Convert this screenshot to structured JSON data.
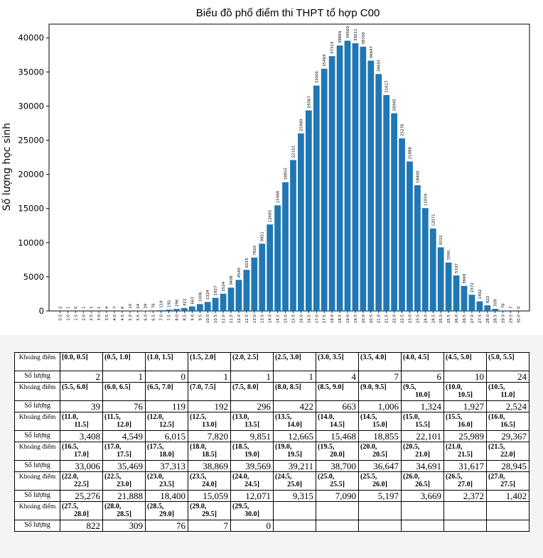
{
  "chart_data": {
    "type": "bar",
    "title": "Biểu đồ phổ điểm thi THPT tổ hợp C00",
    "xlabel": "",
    "ylabel": "Số lượng học sinh",
    "ylim": [
      0,
      42000
    ],
    "yticks": [
      "0",
      "5000",
      "10000",
      "15000",
      "20000",
      "25000",
      "30000",
      "35000",
      "40000"
    ],
    "ytick_values": [
      0,
      5000,
      10000,
      15000,
      20000,
      25000,
      30000,
      35000,
      40000
    ],
    "bar_color": "#1f77b4",
    "categories": [
      "0.5",
      "1.0",
      "1.5",
      "2.0",
      "2.5",
      "3.0",
      "3.5",
      "4.0",
      "4.5",
      "5.0",
      "5.5",
      "6.0",
      "6.5",
      "7.0",
      "7.5",
      "8.0",
      "8.5",
      "9.0",
      "9.5",
      "10.0",
      "10.5",
      "11.0",
      "11.5",
      "12.0",
      "12.5",
      "13.0",
      "13.5",
      "14.0",
      "14.5",
      "15.0",
      "15.5",
      "16.0",
      "16.5",
      "17.0",
      "17.5",
      "18.0",
      "18.5",
      "19.0",
      "19.5",
      "20.0",
      "20.5",
      "21.0",
      "21.5",
      "22.0",
      "22.5",
      "23.0",
      "23.5",
      "24.0",
      "24.5",
      "25.0",
      "25.5",
      "26.0",
      "26.5",
      "27.0",
      "27.5",
      "28.0",
      "28.5",
      "29.0",
      "29.5",
      "30.0"
    ],
    "values": [
      2,
      1,
      0,
      1,
      1,
      1,
      4,
      7,
      6,
      10,
      24,
      39,
      76,
      119,
      192,
      296,
      422,
      663,
      1006,
      1324,
      1927,
      2524,
      3408,
      4549,
      6015,
      7820,
      9851,
      12665,
      15468,
      18855,
      22101,
      25989,
      29367,
      33006,
      35469,
      37313,
      38869,
      39569,
      39211,
      38700,
      36647,
      34691,
      31617,
      28945,
      25276,
      21888,
      18400,
      15059,
      12071,
      9315,
      7090,
      5197,
      3669,
      2372,
      1402,
      822,
      309,
      76,
      7,
      0
    ]
  },
  "table": {
    "range_label": "Khoảng điểm",
    "count_label": "Số lượng",
    "rows": [
      {
        "ranges": [
          [
            "[0.0, 0.5]"
          ],
          [
            "(0.5, 1.0]"
          ],
          [
            "(1.0, 1.5]"
          ],
          [
            "(1.5, 2.0]"
          ],
          [
            "(2.0, 2.5]"
          ],
          [
            "(2.5, 3.0]"
          ],
          [
            "(3.0, 3.5]"
          ],
          [
            "(3.5, 4.0]"
          ],
          [
            "(4.0, 4.5]"
          ],
          [
            "(4.5, 5.0]"
          ],
          [
            "(5.0, 5.5]"
          ]
        ],
        "counts": [
          "2",
          "1",
          "0",
          "1",
          "1",
          "1",
          "4",
          "7",
          "6",
          "10",
          "24"
        ]
      },
      {
        "ranges": [
          [
            "(5.5, 6.0]"
          ],
          [
            "(6.0, 6.5]"
          ],
          [
            "(6.5, 7.0]"
          ],
          [
            "(7.0, 7.5]"
          ],
          [
            "(7.5, 8.0]"
          ],
          [
            "(8.0, 8.5]"
          ],
          [
            "(8.5, 9.0]"
          ],
          [
            "(9.0, 9.5]"
          ],
          [
            "(9.5,",
            "10.0]"
          ],
          [
            "(10.0,",
            "10.5]"
          ],
          [
            "(10.5,",
            "11.0]"
          ]
        ],
        "counts": [
          "39",
          "76",
          "119",
          "192",
          "296",
          "422",
          "663",
          "1,006",
          "1,324",
          "1,927",
          "2,524"
        ]
      },
      {
        "ranges": [
          [
            "(11.0,",
            "11.5]"
          ],
          [
            "(11.5,",
            "12.0]"
          ],
          [
            "(12.0,",
            "12.5]"
          ],
          [
            "(12.5,",
            "13.0]"
          ],
          [
            "(13.0,",
            "13.5]"
          ],
          [
            "(13.5,",
            "14.0]"
          ],
          [
            "(14.0,",
            "14.5]"
          ],
          [
            "(14.5,",
            "15.0]"
          ],
          [
            "(15.0,",
            "15.5]"
          ],
          [
            "(15.5,",
            "16.0]"
          ],
          [
            "(16.0,",
            "16.5]"
          ]
        ],
        "counts": [
          "3,408",
          "4,549",
          "6,015",
          "7,820",
          "9,851",
          "12,665",
          "15,468",
          "18,855",
          "22,101",
          "25,989",
          "29,367"
        ]
      },
      {
        "ranges": [
          [
            "(16.5,",
            "17.0]"
          ],
          [
            "(17.0,",
            "17.5]"
          ],
          [
            "(17.5,",
            "18.0]"
          ],
          [
            "(18.0,",
            "18.5]"
          ],
          [
            "(18.5,",
            "19.0]"
          ],
          [
            "(19.0,",
            "19.5]"
          ],
          [
            "(19.5,",
            "20.0]"
          ],
          [
            "(20.0,",
            "20.5]"
          ],
          [
            "(20.5,",
            "21.0]"
          ],
          [
            "(21.0,",
            "21.5]"
          ],
          [
            "(21.5,",
            "22.0]"
          ]
        ],
        "counts": [
          "33,006",
          "35,469",
          "37,313",
          "38,869",
          "39,569",
          "39,211",
          "38,700",
          "36,647",
          "34,691",
          "31,617",
          "28,945"
        ]
      },
      {
        "ranges": [
          [
            "(22.0,",
            "22.5]"
          ],
          [
            "(22.5,",
            "23.0]"
          ],
          [
            "(23.0,",
            "23.5]"
          ],
          [
            "(23.5,",
            "24.0]"
          ],
          [
            "(24.0,",
            "24.5]"
          ],
          [
            "(24.5,",
            "25.0]"
          ],
          [
            "(25.0,",
            "25.5]"
          ],
          [
            "(25.5,",
            "26.0]"
          ],
          [
            "(26.0,",
            "26.5]"
          ],
          [
            "(26.5,",
            "27.0]"
          ],
          [
            "(27.0,",
            "27.5]"
          ]
        ],
        "counts": [
          "25,276",
          "21,888",
          "18,400",
          "15,059",
          "12,071",
          "9,315",
          "7,090",
          "5,197",
          "3,669",
          "2,372",
          "1,402"
        ]
      },
      {
        "ranges": [
          [
            "(27.5,",
            "28.0]"
          ],
          [
            "(28.0,",
            "28.5]"
          ],
          [
            "(28.5,",
            "29.0]"
          ],
          [
            "(29.0,",
            "29.5]"
          ],
          [
            "(29.5,",
            "30.0]"
          ],
          [
            ""
          ],
          [
            ""
          ],
          [
            ""
          ],
          [
            ""
          ],
          [
            ""
          ],
          [
            ""
          ]
        ],
        "counts": [
          "822",
          "309",
          "76",
          "7",
          "0",
          "",
          "",
          "",
          "",
          "",
          ""
        ]
      }
    ]
  }
}
